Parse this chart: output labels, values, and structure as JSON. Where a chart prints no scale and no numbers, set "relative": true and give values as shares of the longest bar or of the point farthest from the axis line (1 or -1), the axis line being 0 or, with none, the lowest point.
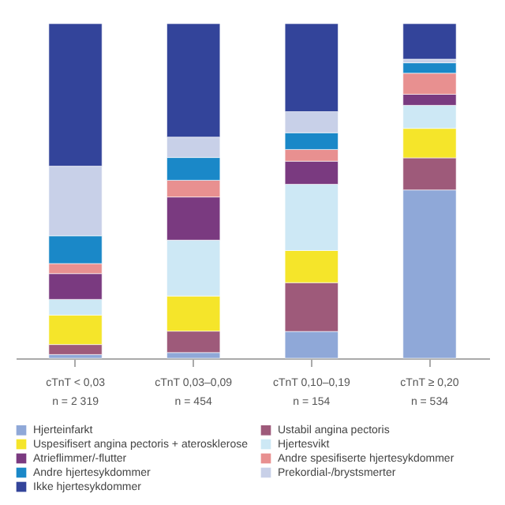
{
  "chart_data": {
    "type": "bar",
    "stacked": true,
    "relative": true,
    "legend": "bottom",
    "categories": [
      "cTnT < 0,03\nn = 2 319",
      "cTnT 0,03–0,09\nn = 454",
      "cTnT 0,10–0,19\nn = 154",
      "cTnT ≥ 0,20\nn = 534"
    ],
    "series": [
      {
        "name": "Hjerteinfarkt",
        "color": "#8fa8d8",
        "values": [
          0.011,
          0.017,
          0.08,
          0.503
        ]
      },
      {
        "name": "Ustabil angina pectoris",
        "color": "#9e5a7a",
        "values": [
          0.03,
          0.064,
          0.146,
          0.096
        ]
      },
      {
        "name": "Uspesifisert angina pectoris + aterosklerose",
        "color": "#f5e52a",
        "values": [
          0.088,
          0.105,
          0.096,
          0.088
        ]
      },
      {
        "name": "Hjertesvikt",
        "color": "#cde8f5",
        "values": [
          0.047,
          0.167,
          0.198,
          0.069
        ]
      },
      {
        "name": "Atrieflimmer/-flutter",
        "color": "#7a3a80",
        "values": [
          0.077,
          0.129,
          0.069,
          0.033
        ]
      },
      {
        "name": "Andre spesifiserte hjertesykdommer",
        "color": "#e89090",
        "values": [
          0.03,
          0.05,
          0.035,
          0.063
        ]
      },
      {
        "name": "Andre hjertesykdommer",
        "color": "#1a88c8",
        "values": [
          0.083,
          0.068,
          0.05,
          0.031
        ]
      },
      {
        "name": "Prekordial-/brystsmerter",
        "color": "#c8d0e8",
        "values": [
          0.208,
          0.061,
          0.063,
          0.011
        ]
      },
      {
        "name": "Ikke hjertesykdommer",
        "color": "#33449a",
        "values": [
          0.426,
          0.339,
          0.263,
          0.106
        ]
      }
    ]
  }
}
